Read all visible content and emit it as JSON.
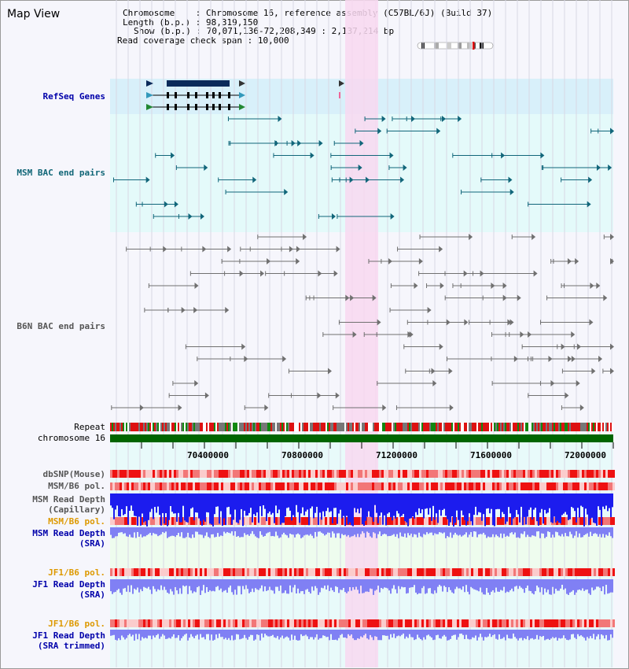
{
  "title": "Map View",
  "info": {
    "chromosome_key": "Chromosome",
    "chromosome_val": "Chromosome 16, reference assembly (C57BL/6J) (Build 37)",
    "length_key": "Length (b.p.)",
    "length_val": "98,319,150",
    "show_key": "Show (b.p.)",
    "show_val": "70,071,136-72,208,349 : 2,137,214 bp",
    "span_key": "Read coverage check span",
    "span_val": "10,000"
  },
  "tracks": {
    "refseq": "RefSeq Genes",
    "msm_bac": "MSM BAC end pairs",
    "b6n_bac": "B6N BAC end pairs",
    "repeat": "Repeat",
    "chromosome": "chromosome 16",
    "dbsnp": "dbSNP(Mouse)",
    "msm_b6_pol_1": "MSM/B6 pol.",
    "msm_rd_1a": "MSM Read Depth",
    "msm_rd_1b": "(Capillary)",
    "msm_b6_pol_2": "MSM/B6 pol.",
    "msm_rd_2a": "MSM Read Depth",
    "msm_rd_2b": "(SRA)",
    "jf1_pol_1": "JF1/B6 pol.",
    "jf1_rd_1a": "JF1 Read Depth",
    "jf1_rd_1b": "(SRA)",
    "jf1_pol_2": "JF1/B6 pol.",
    "jf1_rd_2a": "JF1 Read Depth",
    "jf1_rd_2b": "(SRA trimmed)"
  },
  "axis_ticks": [
    "70400000",
    "70800000",
    "71200000",
    "71600000",
    "72000000"
  ],
  "colors": {
    "highlight": "#f8d8f0",
    "refseq_bg": "#d8f0fa",
    "bac_bg": "#e4fafa",
    "chromosome_bar": "#006600",
    "msm_bac_line": "#11667a",
    "b6n_bac_line": "#707070",
    "depth_dark_blue": "#1c1cee",
    "depth_light_blue": "#8080f4",
    "label_blue": "#0000aa",
    "label_orange": "#dd9900",
    "label_teal": "#116677"
  }
}
